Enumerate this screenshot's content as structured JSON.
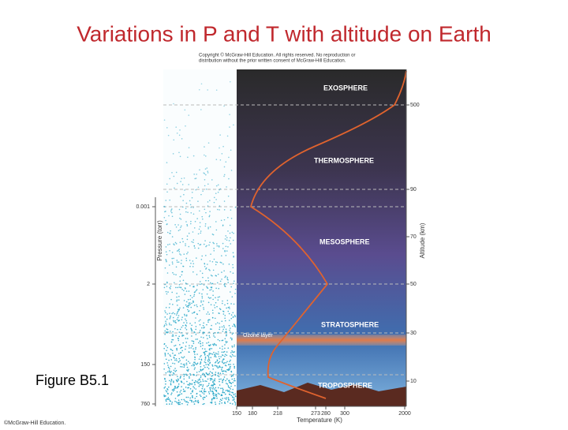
{
  "title": "Variations in P and T with altitude on Earth",
  "caption": "Figure B5.1",
  "footer": "©McGraw-Hill Education.",
  "figure": {
    "copyright": [
      "Copyright © McGraw-Hill Education. All rights reserved. No reproduction or",
      "distribution without the prior written consent of McGraw-Hill Education."
    ],
    "layers": [
      "EXOSPHERE",
      "THERMOSPHERE",
      "MESOSPHERE",
      "STRATOSPHERE",
      "TROPOSPHERE"
    ],
    "ozone": "Ozone layer",
    "pressure_axis": {
      "label": "Pressure (torr)",
      "ticks": [
        "0.001",
        "2",
        "150",
        "760"
      ]
    },
    "altitude_axis": {
      "label": "Altitude (km)",
      "ticks": [
        "500",
        "90",
        "70",
        "50",
        "30",
        "10"
      ]
    },
    "temperature_axis": {
      "label": "Temperature (K)",
      "ticks": [
        "150",
        "180",
        "218",
        "273",
        "280",
        "300",
        "2000"
      ]
    }
  }
}
